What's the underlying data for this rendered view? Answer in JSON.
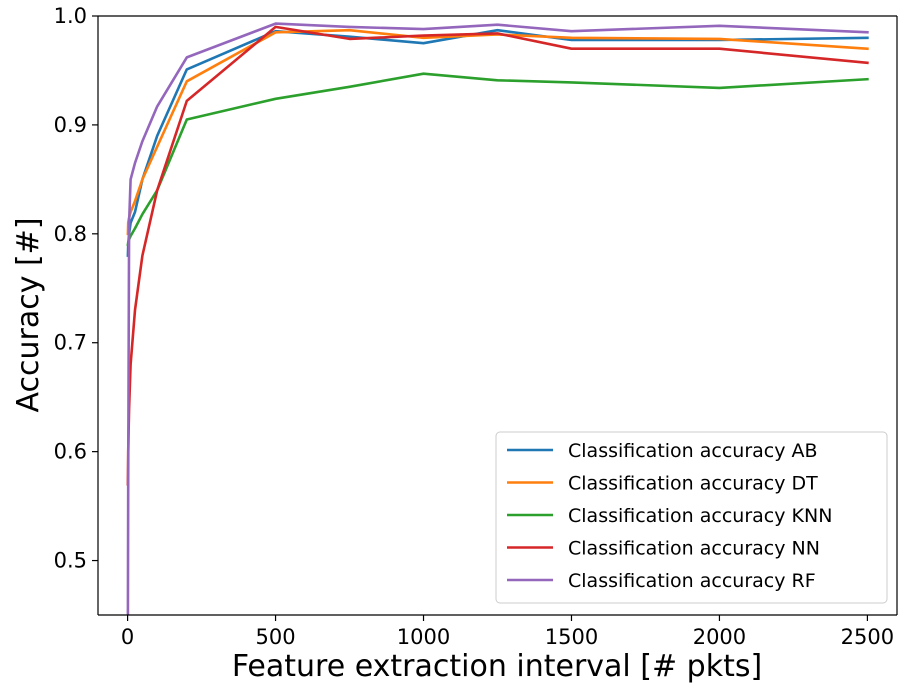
{
  "chart_data": {
    "type": "line",
    "xlabel": "Feature extraction interval [# pkts]",
    "ylabel": "Accuracy [#]",
    "xlim": [
      -100,
      2600
    ],
    "ylim": [
      0.45,
      1.0
    ],
    "xticks": [
      0,
      500,
      1000,
      1500,
      2000,
      2500
    ],
    "yticks": [
      0.5,
      0.6,
      0.7,
      0.8,
      0.9,
      1.0
    ],
    "xtick_labels": [
      "0",
      "500",
      "1000",
      "1500",
      "2000",
      "2500"
    ],
    "ytick_labels": [
      "0.5",
      "0.6",
      "0.7",
      "0.8",
      "0.9",
      "1.0"
    ],
    "grid": false,
    "legend_position": "lower-right",
    "series": [
      {
        "name": "Classification accuracy AB",
        "color": "#1f77b4",
        "x": [
          1,
          2,
          5,
          10,
          25,
          50,
          100,
          200,
          500,
          750,
          1000,
          1250,
          1500,
          2000,
          2500
        ],
        "y": [
          0.78,
          0.79,
          0.8,
          0.81,
          0.82,
          0.85,
          0.89,
          0.951,
          0.986,
          0.981,
          0.975,
          0.987,
          0.978,
          0.978,
          0.98
        ]
      },
      {
        "name": "Classification accuracy DT",
        "color": "#ff7f0e",
        "x": [
          1,
          2,
          5,
          10,
          25,
          50,
          100,
          200,
          500,
          750,
          1000,
          1250,
          1500,
          2000,
          2500
        ],
        "y": [
          0.8,
          0.81,
          0.815,
          0.82,
          0.83,
          0.85,
          0.88,
          0.94,
          0.985,
          0.987,
          0.98,
          0.983,
          0.98,
          0.979,
          0.97
        ]
      },
      {
        "name": "Classification accuracy KNN",
        "color": "#2ca02c",
        "x": [
          1,
          2,
          5,
          10,
          25,
          50,
          100,
          200,
          500,
          750,
          1000,
          1250,
          1500,
          2000,
          2500
        ],
        "y": [
          0.79,
          0.792,
          0.795,
          0.798,
          0.805,
          0.818,
          0.84,
          0.905,
          0.924,
          0.935,
          0.947,
          0.941,
          0.939,
          0.934,
          0.942
        ]
      },
      {
        "name": "Classification accuracy NN",
        "color": "#d62728",
        "x": [
          1,
          2,
          5,
          10,
          25,
          50,
          100,
          200,
          500,
          750,
          1000,
          1250,
          1500,
          2000,
          2500
        ],
        "y": [
          0.57,
          0.6,
          0.64,
          0.68,
          0.73,
          0.78,
          0.84,
          0.922,
          0.99,
          0.979,
          0.982,
          0.984,
          0.97,
          0.97,
          0.957
        ]
      },
      {
        "name": "Classification accuracy RF",
        "color": "#9467bd",
        "x": [
          1,
          2,
          5,
          10,
          25,
          50,
          100,
          200,
          500,
          750,
          1000,
          1250,
          1500,
          2000,
          2500
        ],
        "y": [
          0.45,
          0.57,
          0.81,
          0.85,
          0.865,
          0.885,
          0.917,
          0.962,
          0.993,
          0.99,
          0.988,
          0.992,
          0.986,
          0.991,
          0.985
        ]
      }
    ]
  }
}
